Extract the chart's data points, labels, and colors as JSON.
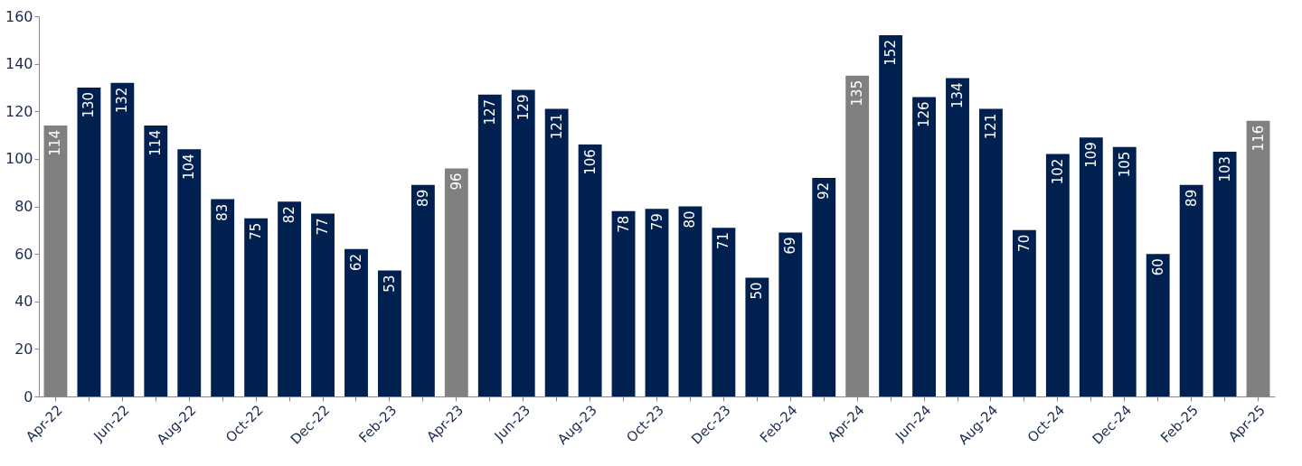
{
  "chart_data": {
    "type": "bar",
    "categories": [
      "Apr-22",
      null,
      "Jun-22",
      null,
      "Aug-22",
      null,
      "Oct-22",
      null,
      "Dec-22",
      null,
      "Feb-23",
      null,
      "Apr-23",
      null,
      "Jun-23",
      null,
      "Aug-23",
      null,
      "Oct-23",
      null,
      "Dec-23",
      null,
      "Feb-24",
      null,
      "Apr-24",
      null,
      "Jun-24",
      null,
      "Aug-24",
      null,
      "Oct-24",
      null,
      "Dec-24",
      null,
      "Feb-25",
      null,
      "Apr-25"
    ],
    "values": [
      114,
      130,
      132,
      114,
      104,
      83,
      75,
      82,
      77,
      62,
      53,
      89,
      96,
      127,
      129,
      121,
      106,
      78,
      79,
      80,
      71,
      50,
      69,
      92,
      135,
      152,
      126,
      134,
      121,
      70,
      102,
      109,
      105,
      60,
      89,
      103,
      116
    ],
    "colors": [
      "#808080",
      "#002050",
      "#002050",
      "#002050",
      "#002050",
      "#002050",
      "#002050",
      "#002050",
      "#002050",
      "#002050",
      "#002050",
      "#002050",
      "#808080",
      "#002050",
      "#002050",
      "#002050",
      "#002050",
      "#002050",
      "#002050",
      "#002050",
      "#002050",
      "#002050",
      "#002050",
      "#002050",
      "#808080",
      "#002050",
      "#002050",
      "#002050",
      "#002050",
      "#002050",
      "#002050",
      "#002050",
      "#002050",
      "#002050",
      "#002050",
      "#002050",
      "#808080"
    ],
    "ylim": [
      0,
      160
    ],
    "yticks": [
      0,
      20,
      40,
      60,
      80,
      100,
      120,
      140,
      160
    ],
    "data_labels": true,
    "grid": false
  }
}
